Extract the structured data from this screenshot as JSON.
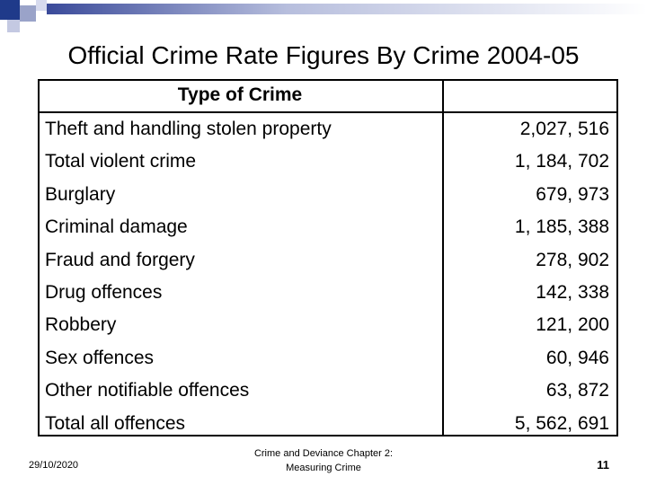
{
  "slide": {
    "title": "Official Crime Rate Figures By Crime 2004-05"
  },
  "table": {
    "header_type": "Type of Crime",
    "header_value": "",
    "rows": [
      {
        "crime": "Theft and handling stolen property",
        "value": "2,027, 516"
      },
      {
        "crime": "Total violent crime",
        "value": "1, 184, 702"
      },
      {
        "crime": "Burglary",
        "value": "679, 973"
      },
      {
        "crime": "Criminal damage",
        "value": "1, 185, 388"
      },
      {
        "crime": "Fraud and forgery",
        "value": "278, 902"
      },
      {
        "crime": "Drug offences",
        "value": "142, 338"
      },
      {
        "crime": "Robbery",
        "value": "121, 200"
      },
      {
        "crime": "Sex offences",
        "value": "60, 946"
      },
      {
        "crime": "Other notifiable offences",
        "value": "63, 872"
      },
      {
        "crime": "Total all offences",
        "value": "5, 562, 691"
      }
    ]
  },
  "footer": {
    "date": "29/10/2020",
    "center_line1": "Crime and Deviance Chapter 2:",
    "center_line2": "Measuring Crime",
    "page": "11"
  },
  "colors": {
    "accent_dark": "#1f3a8a",
    "accent_light": "#9aa3c9"
  }
}
